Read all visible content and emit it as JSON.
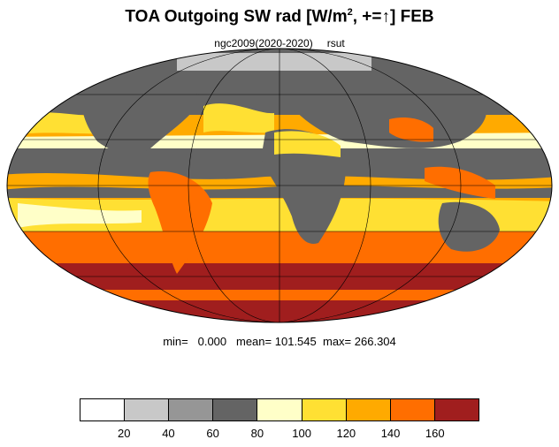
{
  "title": {
    "main": "TOA Outgoing SW rad [W/m",
    "sup": "2",
    "rest": ", +=↑] FEB"
  },
  "subtitle": {
    "case": "ngc2009(2020-2020)",
    "variable": "rsut"
  },
  "stats": {
    "min_label": "min=",
    "min": "0.000",
    "mean_label": "mean=",
    "mean": "101.545",
    "max_label": "max=",
    "max": "266.304"
  },
  "map": {
    "projection": "Mollweide",
    "gridlines": true,
    "coastlines": true,
    "background_missing_color": "#ffffff"
  },
  "colorbar": {
    "colors": [
      "#ffffff",
      "#c8c8c8",
      "#969696",
      "#646464",
      "#ffffc8",
      "#ffe033",
      "#ffaa00",
      "#ff6e00",
      "#a01e1e"
    ],
    "tick_labels": [
      "20",
      "40",
      "60",
      "80",
      "100",
      "120",
      "140",
      "160"
    ]
  }
}
